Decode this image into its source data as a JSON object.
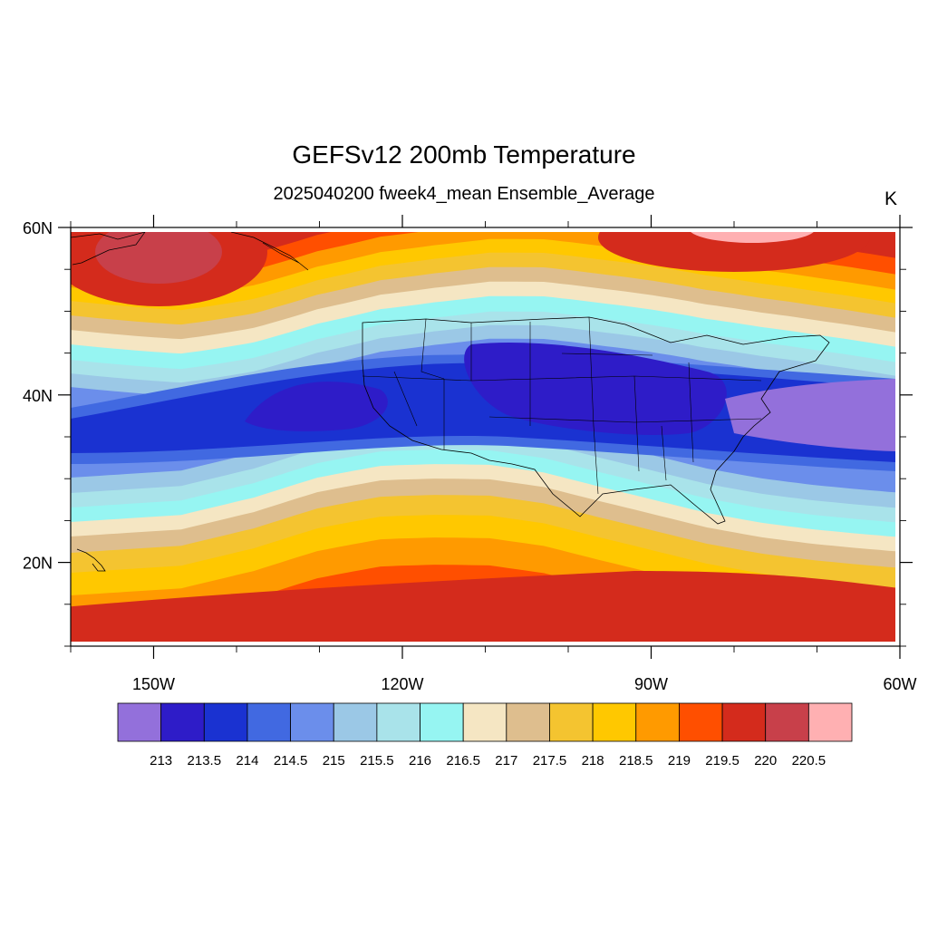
{
  "title": "GEFSv12 200mb Temperature",
  "subtitle": "2025040200 fweek4_mean Ensemble_Average",
  "units": "K",
  "map": {
    "projection": "cylindrical-equidistant",
    "lon_range": [
      -160,
      -60
    ],
    "lat_range": [
      10,
      60
    ],
    "lat_ticks": [
      {
        "value": 60,
        "label": "60N"
      },
      {
        "value": 40,
        "label": "40N"
      },
      {
        "value": 20,
        "label": "20N"
      }
    ],
    "lon_ticks": [
      {
        "value": -150,
        "label": "150W"
      },
      {
        "value": -120,
        "label": "120W"
      },
      {
        "value": -90,
        "label": "90W"
      },
      {
        "value": -60,
        "label": "60W"
      }
    ],
    "features": [
      "coastlines",
      "US state boundaries"
    ]
  },
  "colorbar": {
    "levels": [
      "213",
      "213.5",
      "214",
      "214.5",
      "215",
      "215.5",
      "216",
      "216.5",
      "217",
      "217.5",
      "218",
      "218.5",
      "219",
      "219.5",
      "220",
      "220.5"
    ],
    "colors": [
      "#9370DB",
      "#2E1CC8",
      "#1A32D1",
      "#4169E1",
      "#6B8EEB",
      "#9BC8E6",
      "#A9E3EA",
      "#96F5F2",
      "#F5E6C3",
      "#DEBE8E",
      "#F4C430",
      "#FFC800",
      "#FF9A00",
      "#FF4F00",
      "#D42B1C",
      "#C8404A",
      "#FFB0B2"
    ]
  }
}
